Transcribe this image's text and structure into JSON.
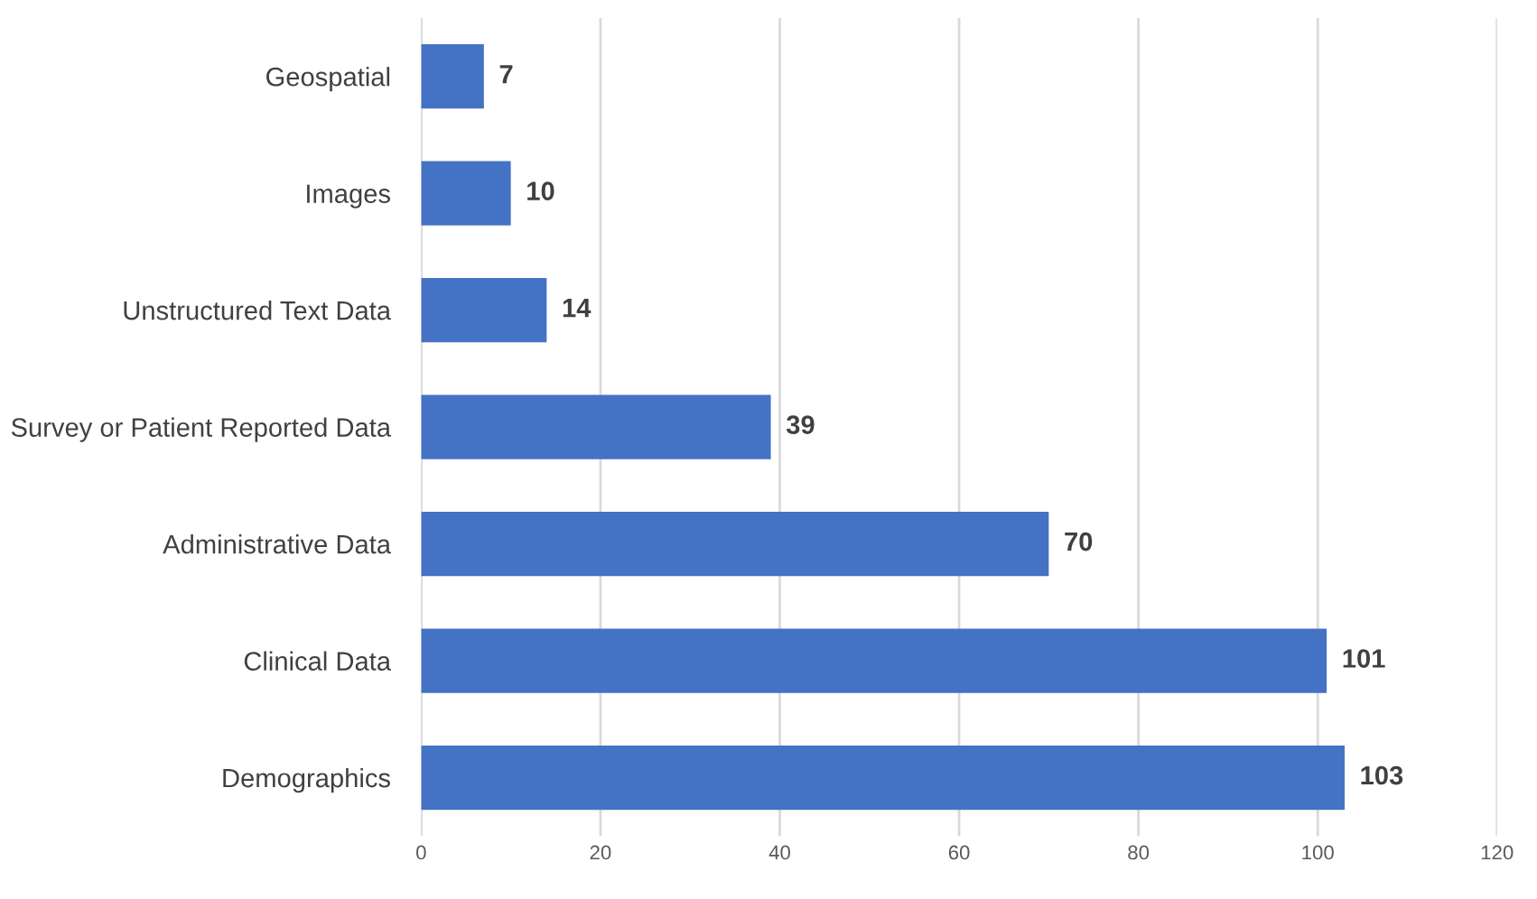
{
  "chart_data": {
    "type": "bar",
    "orientation": "horizontal",
    "categories": [
      "Geospatial",
      "Images",
      "Unstructured Text Data",
      "Survey or Patient Reported Data",
      "Administrative Data",
      "Clinical Data",
      "Demographics"
    ],
    "values": [
      7,
      10,
      14,
      39,
      70,
      101,
      103
    ],
    "color": "#4472c4",
    "xlim": [
      0,
      120
    ],
    "xticks": [
      0,
      20,
      40,
      60,
      80,
      100,
      120
    ],
    "grid": "x",
    "data_labels": true
  }
}
